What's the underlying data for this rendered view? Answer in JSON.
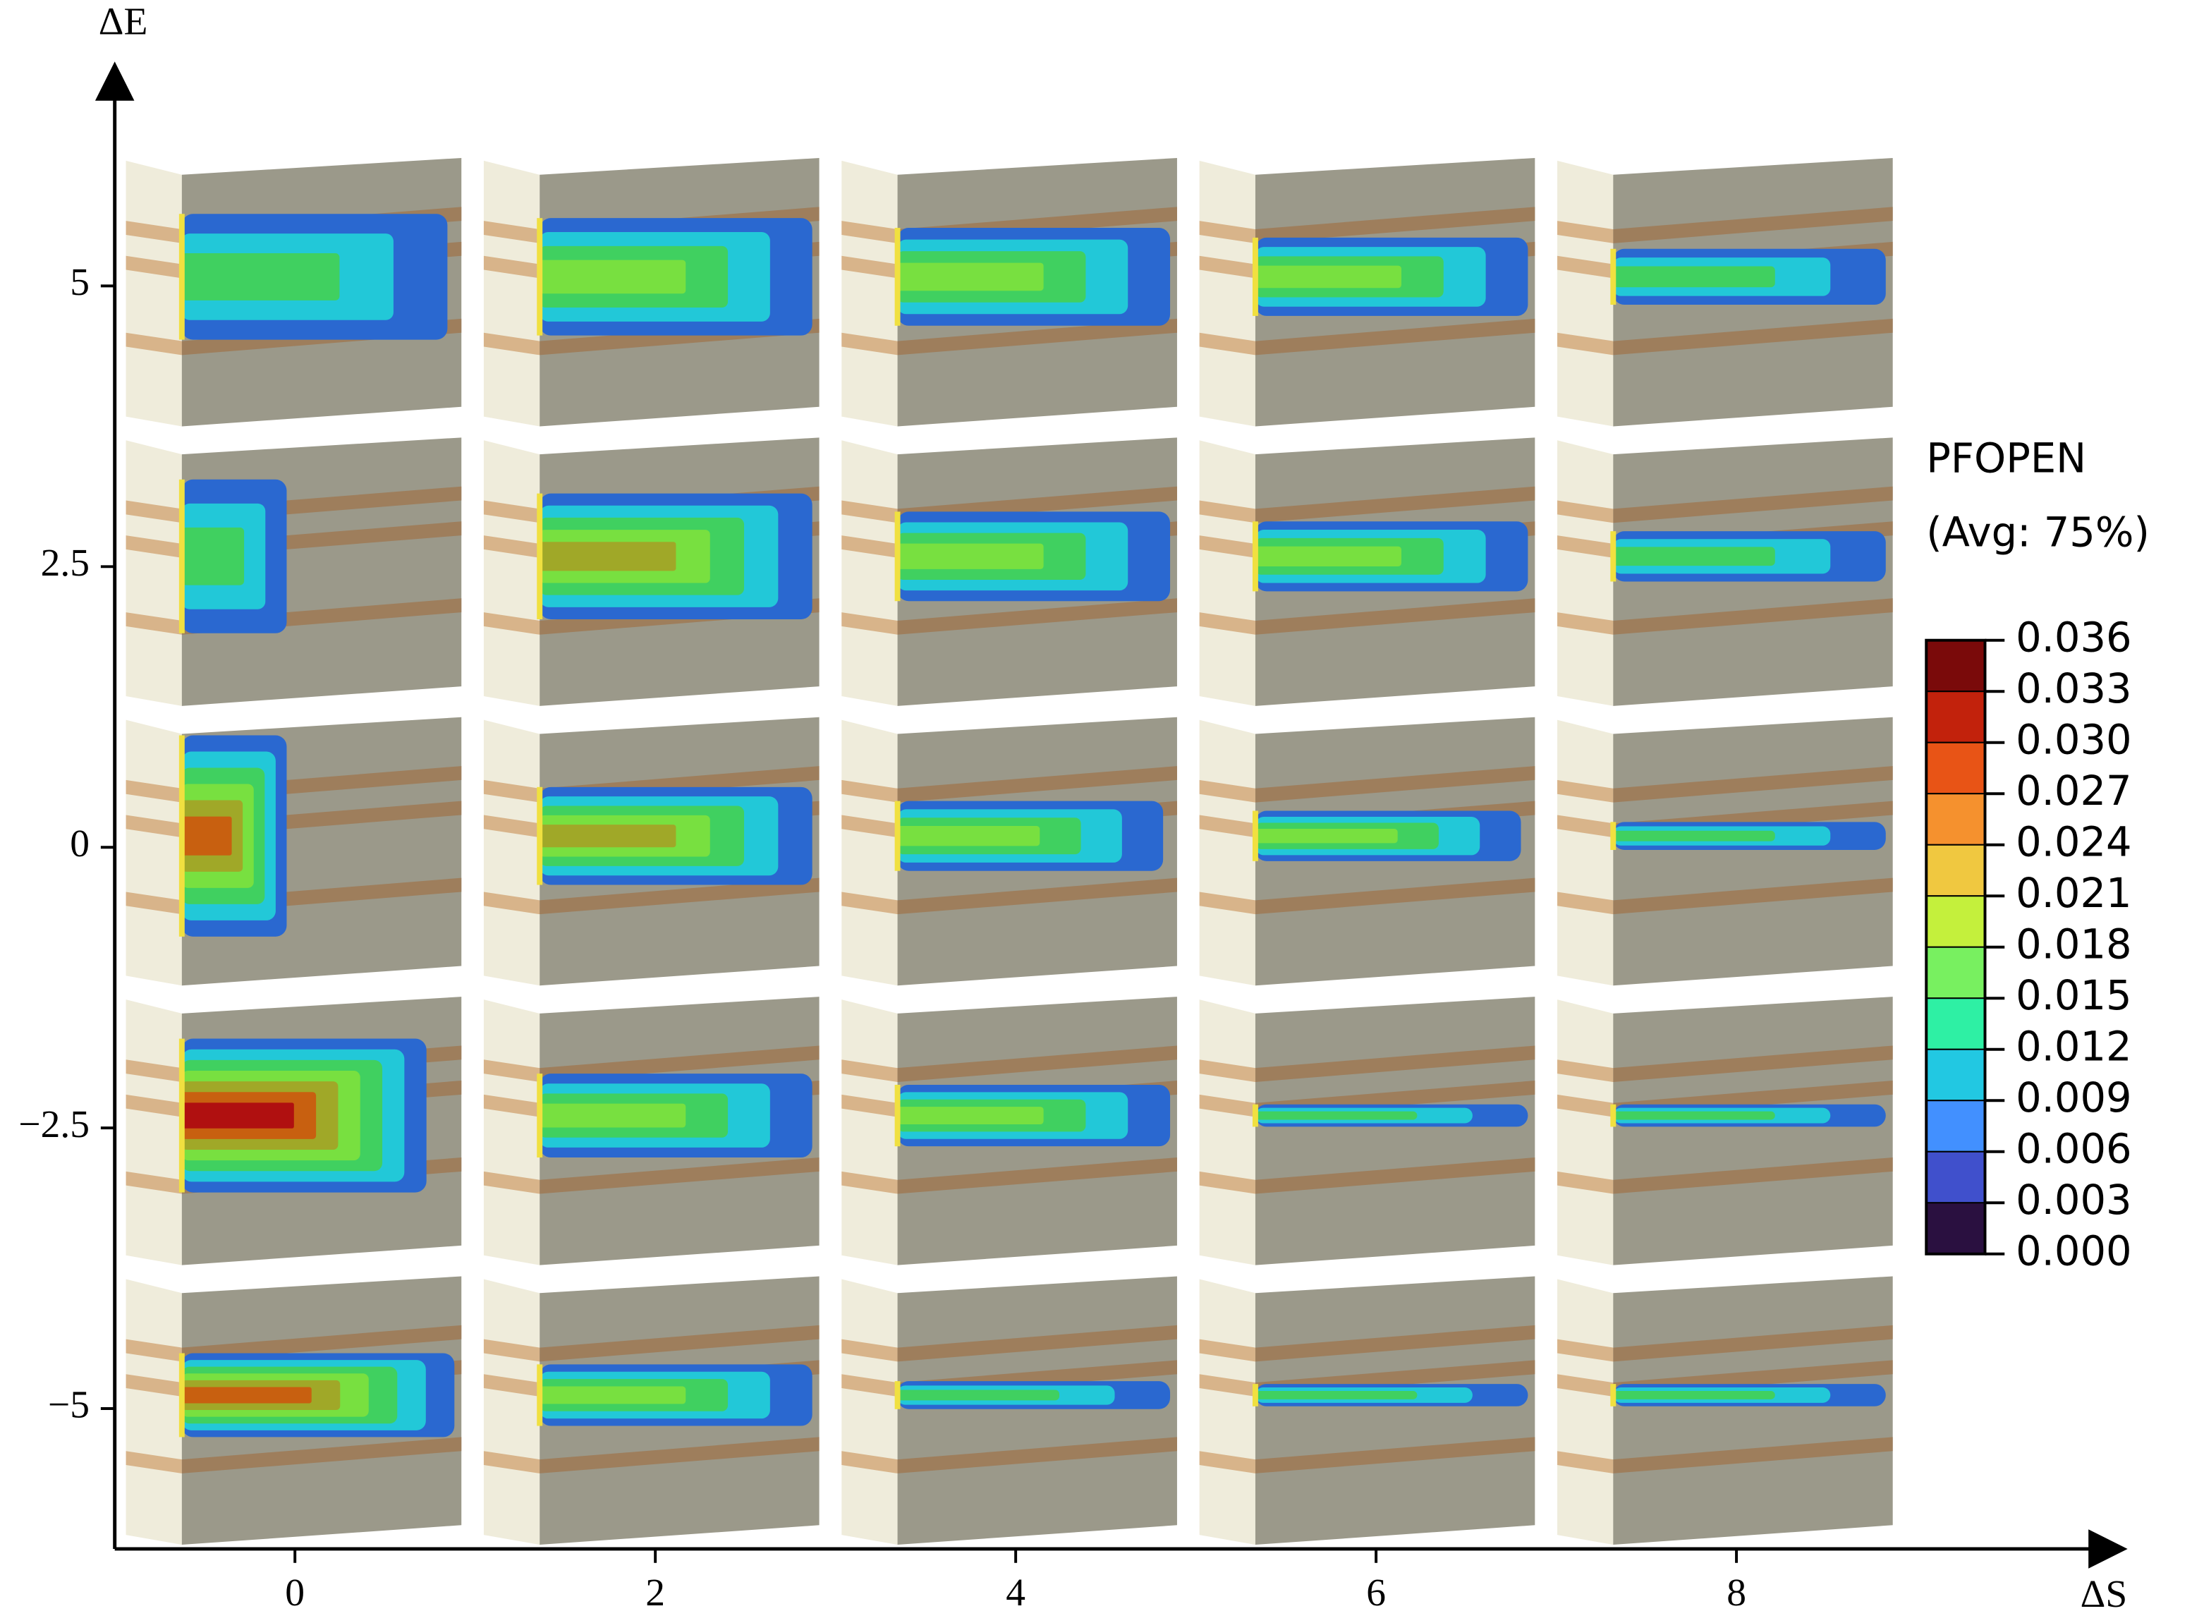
{
  "chart_data": {
    "type": "image-grid",
    "xlabel": "ΔS",
    "ylabel": "ΔE",
    "xlim": [
      -1,
      10
    ],
    "ylim": [
      -6.25,
      6.8
    ],
    "xticks": [
      0,
      2,
      4,
      6,
      8
    ],
    "yticks": [
      5,
      2.5,
      0,
      {
        "value": -2.5,
        "label": "−2.5"
      },
      {
        "value": -5,
        "label": "−5"
      }
    ],
    "colorbar": {
      "title": "PFOPEN",
      "subtitle": "(Avg: 75%)",
      "lim": [
        0,
        0.036
      ],
      "ticks": [
        {
          "value": 0.036,
          "label": "0.036"
        },
        {
          "value": 0.033,
          "label": "0.033"
        },
        {
          "value": 0.03,
          "label": "0.030"
        },
        {
          "value": 0.027,
          "label": "0.027"
        },
        {
          "value": 0.024,
          "label": "0.024"
        },
        {
          "value": 0.021,
          "label": "0.021"
        },
        {
          "value": 0.018,
          "label": "0.018"
        },
        {
          "value": 0.015,
          "label": "0.015"
        },
        {
          "value": 0.012,
          "label": "0.012"
        },
        {
          "value": 0.009,
          "label": "0.009"
        },
        {
          "value": 0.006,
          "label": "0.006"
        },
        {
          "value": 0.003,
          "label": "0.003"
        },
        {
          "value": 0.0,
          "label": "0.000"
        }
      ],
      "colors": [
        "#7a0a0a",
        "#c2220c",
        "#e85416",
        "#f5912e",
        "#f0c840",
        "#c4f03c",
        "#78f060",
        "#2ef0a4",
        "#22c8e2",
        "#4290ff",
        "#4050cc",
        "#2a1040"
      ]
    }
  }
}
